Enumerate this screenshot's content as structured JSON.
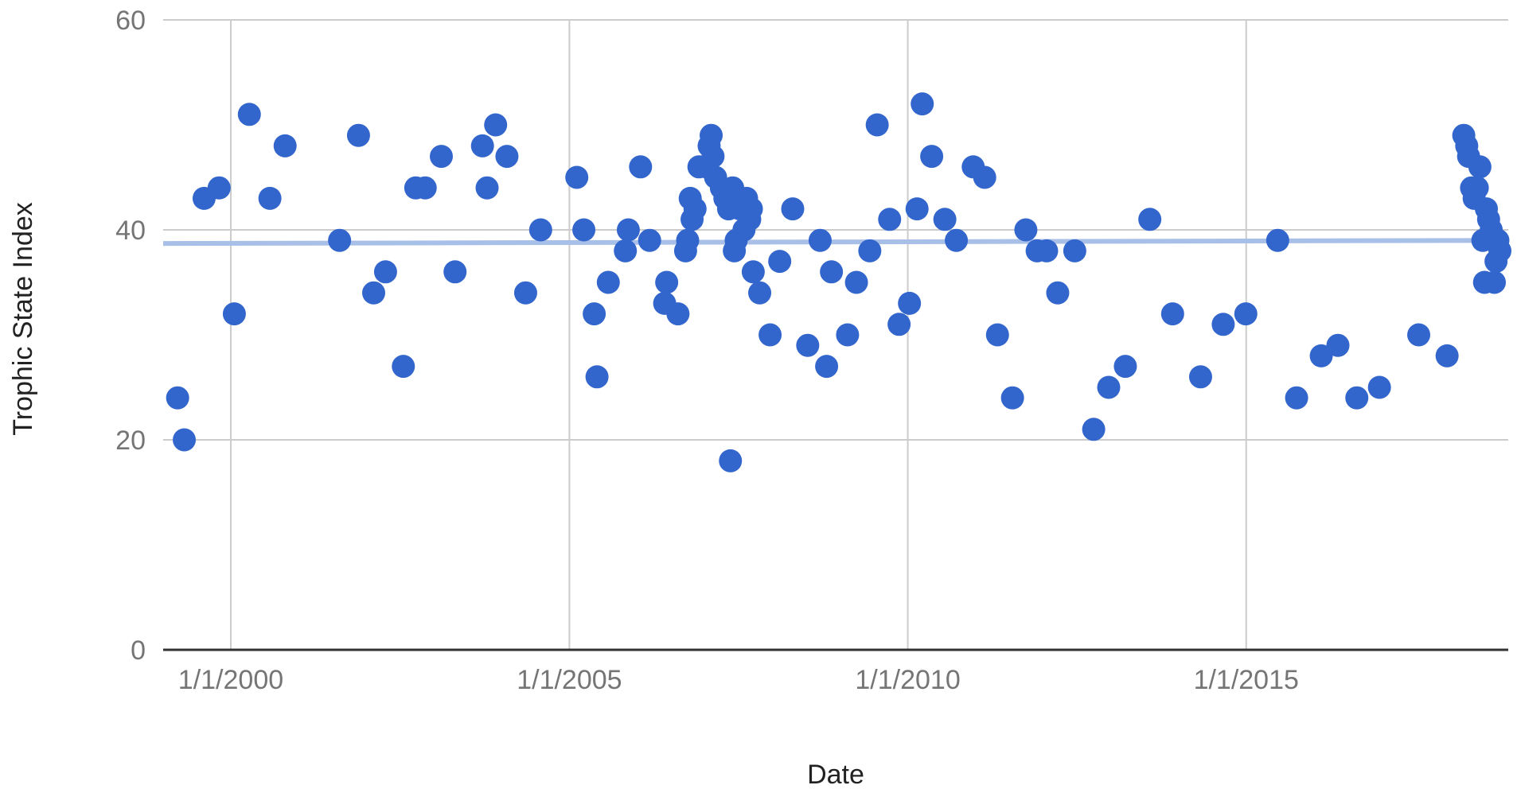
{
  "chart_data": {
    "type": "scatter",
    "title": "",
    "xlabel": "Date",
    "ylabel": "Trophic State Index",
    "xlim": [
      "1999-01-01",
      "2018-11-15"
    ],
    "ylim": [
      0,
      60
    ],
    "x_ticks": [
      "1/1/2000",
      "1/1/2005",
      "1/1/2010",
      "1/1/2015"
    ],
    "y_ticks": [
      0,
      20,
      40,
      60
    ],
    "grid": true,
    "legend": "none",
    "colors": {
      "points": "#3366cc",
      "trendline": "#a8bfe8",
      "grid": "#cccccc",
      "axis": "#333333"
    },
    "trendline": {
      "x": [
        "1999-01-01",
        "2018-11-15"
      ],
      "y": [
        38.7,
        39.0
      ]
    },
    "points": [
      [
        "1999-03-20",
        24
      ],
      [
        "1999-04-25",
        20
      ],
      [
        "1999-08-10",
        43
      ],
      [
        "1999-10-30",
        44
      ],
      [
        "2000-01-20",
        32
      ],
      [
        "2000-04-10",
        51
      ],
      [
        "2000-07-30",
        43
      ],
      [
        "2000-10-20",
        48
      ],
      [
        "2001-08-10",
        39
      ],
      [
        "2001-11-20",
        49
      ],
      [
        "2002-02-10",
        34
      ],
      [
        "2002-04-15",
        36
      ],
      [
        "2002-07-20",
        27
      ],
      [
        "2002-09-25",
        44
      ],
      [
        "2002-11-15",
        44
      ],
      [
        "2003-02-10",
        47
      ],
      [
        "2003-04-25",
        36
      ],
      [
        "2003-09-20",
        48
      ],
      [
        "2003-10-15",
        44
      ],
      [
        "2003-11-30",
        50
      ],
      [
        "2004-01-30",
        47
      ],
      [
        "2004-05-10",
        34
      ],
      [
        "2004-07-30",
        40
      ],
      [
        "2005-02-10",
        45
      ],
      [
        "2005-03-20",
        40
      ],
      [
        "2005-05-15",
        32
      ],
      [
        "2005-05-30",
        26
      ],
      [
        "2005-07-30",
        35
      ],
      [
        "2005-10-30",
        38
      ],
      [
        "2005-11-15",
        40
      ],
      [
        "2006-01-20",
        46
      ],
      [
        "2006-03-10",
        39
      ],
      [
        "2006-05-30",
        33
      ],
      [
        "2006-06-10",
        35
      ],
      [
        "2006-08-10",
        32
      ],
      [
        "2006-09-20",
        38
      ],
      [
        "2006-10-01",
        39
      ],
      [
        "2006-10-15",
        43
      ],
      [
        "2006-10-25",
        41
      ],
      [
        "2006-11-10",
        42
      ],
      [
        "2006-12-01",
        46
      ],
      [
        "2007-01-10",
        46
      ],
      [
        "2007-01-25",
        48
      ],
      [
        "2007-02-05",
        49
      ],
      [
        "2007-02-15",
        47
      ],
      [
        "2007-03-01",
        45
      ],
      [
        "2007-04-01",
        44
      ],
      [
        "2007-04-20",
        43
      ],
      [
        "2007-05-10",
        42
      ],
      [
        "2007-05-20",
        18
      ],
      [
        "2007-06-01",
        44
      ],
      [
        "2007-06-10",
        38
      ],
      [
        "2007-06-20",
        39
      ],
      [
        "2007-07-10",
        42
      ],
      [
        "2007-08-01",
        40
      ],
      [
        "2007-08-15",
        43
      ],
      [
        "2007-09-01",
        41
      ],
      [
        "2007-09-10",
        42
      ],
      [
        "2007-09-20",
        36
      ],
      [
        "2007-10-25",
        34
      ],
      [
        "2007-12-20",
        30
      ],
      [
        "2008-02-10",
        37
      ],
      [
        "2008-04-20",
        42
      ],
      [
        "2008-07-10",
        29
      ],
      [
        "2008-09-15",
        39
      ],
      [
        "2008-10-20",
        27
      ],
      [
        "2008-11-15",
        36
      ],
      [
        "2009-02-10",
        30
      ],
      [
        "2009-03-30",
        35
      ],
      [
        "2009-06-10",
        38
      ],
      [
        "2009-07-20",
        50
      ],
      [
        "2009-09-25",
        41
      ],
      [
        "2009-11-15",
        31
      ],
      [
        "2010-01-10",
        33
      ],
      [
        "2010-02-20",
        42
      ],
      [
        "2010-03-20",
        52
      ],
      [
        "2010-05-10",
        47
      ],
      [
        "2010-07-20",
        41
      ],
      [
        "2010-09-20",
        39
      ],
      [
        "2010-12-20",
        46
      ],
      [
        "2011-02-20",
        45
      ],
      [
        "2011-04-30",
        30
      ],
      [
        "2011-07-20",
        24
      ],
      [
        "2011-09-30",
        40
      ],
      [
        "2011-11-30",
        38
      ],
      [
        "2012-01-20",
        38
      ],
      [
        "2012-03-20",
        34
      ],
      [
        "2012-06-20",
        38
      ],
      [
        "2012-09-30",
        21
      ],
      [
        "2012-12-20",
        25
      ],
      [
        "2013-03-20",
        27
      ],
      [
        "2013-07-30",
        41
      ],
      [
        "2013-11-30",
        32
      ],
      [
        "2014-04-30",
        26
      ],
      [
        "2014-08-30",
        31
      ],
      [
        "2014-12-30",
        32
      ],
      [
        "2015-06-20",
        39
      ],
      [
        "2015-09-30",
        24
      ],
      [
        "2016-02-10",
        28
      ],
      [
        "2016-05-10",
        29
      ],
      [
        "2016-08-20",
        24
      ],
      [
        "2016-12-20",
        25
      ],
      [
        "2017-07-20",
        30
      ],
      [
        "2017-12-20",
        28
      ],
      [
        "2018-03-20",
        49
      ],
      [
        "2018-04-05",
        48
      ],
      [
        "2018-04-15",
        47
      ],
      [
        "2018-05-01",
        44
      ],
      [
        "2018-05-15",
        43
      ],
      [
        "2018-06-01",
        44
      ],
      [
        "2018-06-15",
        46
      ],
      [
        "2018-07-01",
        39
      ],
      [
        "2018-07-10",
        35
      ],
      [
        "2018-07-20",
        42
      ],
      [
        "2018-08-01",
        41
      ],
      [
        "2018-08-15",
        40
      ],
      [
        "2018-09-01",
        35
      ],
      [
        "2018-09-10",
        37
      ],
      [
        "2018-09-20",
        39
      ],
      [
        "2018-10-01",
        38
      ]
    ]
  }
}
